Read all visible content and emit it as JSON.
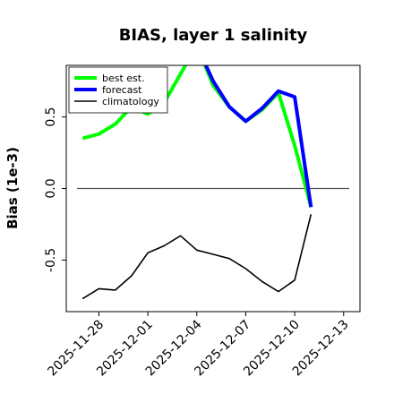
{
  "chart_data": {
    "type": "line",
    "title": "BIAS, layer 1 salinity",
    "xlabel": "",
    "ylabel": "Bias (1e-3)",
    "x_range": [
      "2025-11-26",
      "2025-12-14"
    ],
    "ylim": [
      -0.86,
      0.86
    ],
    "x_ticks": [
      "2025-11-28",
      "2025-12-01",
      "2025-12-04",
      "2025-12-07",
      "2025-12-10",
      "2025-12-13"
    ],
    "highlight_tick": "2025-12-04",
    "highlight_color": "#228B22",
    "y_ticks": [
      -0.5,
      0.0,
      0.5
    ],
    "y_tick_labels": [
      "-0.5",
      "0.0",
      "0.5"
    ],
    "zero_line": 0.0,
    "legend_position": "top-left",
    "grid": false,
    "series": [
      {
        "name": "best est.",
        "color": "#00ff00",
        "x": [
          "2025-11-27",
          "2025-11-28",
          "2025-11-29",
          "2025-11-30",
          "2025-12-01",
          "2025-12-02",
          "2025-12-03",
          "2025-12-04",
          "2025-12-05",
          "2025-12-06",
          "2025-12-07",
          "2025-12-08",
          "2025-12-09",
          "2025-12-10",
          "2025-12-11"
        ],
        "values": [
          0.35,
          0.38,
          0.45,
          0.57,
          0.52,
          0.6,
          0.8,
          1.0,
          0.72,
          0.57,
          0.47,
          0.55,
          0.67,
          0.3,
          -0.13
        ]
      },
      {
        "name": "forecast",
        "color": "#0000ff",
        "x": [
          "2025-12-04",
          "2025-12-05",
          "2025-12-06",
          "2025-12-07",
          "2025-12-08",
          "2025-12-09",
          "2025-12-10",
          "2025-12-11"
        ],
        "values": [
          1.0,
          0.75,
          0.57,
          0.47,
          0.56,
          0.68,
          0.64,
          -0.13
        ]
      },
      {
        "name": "climatology",
        "color": "#000000",
        "x": [
          "2025-11-27",
          "2025-11-28",
          "2025-11-29",
          "2025-11-30",
          "2025-12-01",
          "2025-12-02",
          "2025-12-03",
          "2025-12-04",
          "2025-12-05",
          "2025-12-06",
          "2025-12-07",
          "2025-12-08",
          "2025-12-09",
          "2025-12-10",
          "2025-12-11"
        ],
        "values": [
          -0.77,
          -0.7,
          -0.71,
          -0.61,
          -0.45,
          -0.4,
          -0.33,
          -0.43,
          -0.46,
          -0.49,
          -0.56,
          -0.65,
          -0.72,
          -0.64,
          -0.18
        ]
      }
    ]
  }
}
